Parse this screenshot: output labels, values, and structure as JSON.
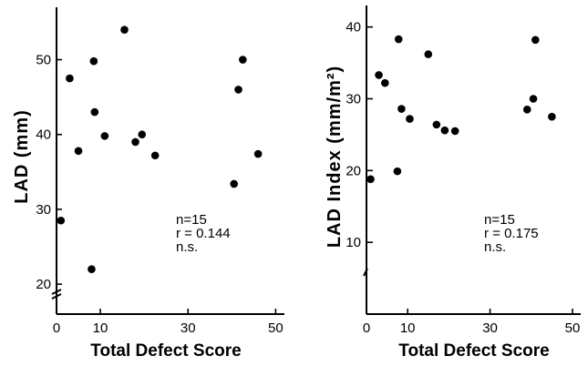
{
  "chart_data": [
    {
      "type": "scatter",
      "xlabel": "Total Defect Score",
      "ylabel": "LAD (mm)",
      "xlim": [
        0,
        52
      ],
      "ylim": [
        16,
        57
      ],
      "x_ticks": [
        0,
        10,
        30,
        50
      ],
      "x_tick_labels": [
        "0",
        "10",
        "30",
        "50"
      ],
      "y_ticks": [
        20,
        30,
        40,
        50
      ],
      "y_tick_labels": [
        "20",
        "30",
        "40",
        "50"
      ],
      "annotations": [
        "n=15",
        "r = 0.144",
        "n.s."
      ],
      "points": [
        {
          "x": 1,
          "y": 28.5
        },
        {
          "x": 3,
          "y": 47.5
        },
        {
          "x": 5,
          "y": 37.8
        },
        {
          "x": 8,
          "y": 22
        },
        {
          "x": 8.5,
          "y": 49.8
        },
        {
          "x": 8.7,
          "y": 43
        },
        {
          "x": 11,
          "y": 39.8
        },
        {
          "x": 15.5,
          "y": 54
        },
        {
          "x": 18,
          "y": 39
        },
        {
          "x": 19.5,
          "y": 40
        },
        {
          "x": 22.5,
          "y": 37.2
        },
        {
          "x": 40.5,
          "y": 33.4
        },
        {
          "x": 41.5,
          "y": 46
        },
        {
          "x": 42.5,
          "y": 50
        },
        {
          "x": 46,
          "y": 37.4
        }
      ]
    },
    {
      "type": "scatter",
      "xlabel": "Total Defect Score",
      "ylabel": "LAD Index (mm/m²)",
      "xlim": [
        0,
        52
      ],
      "ylim": [
        0,
        43
      ],
      "x_ticks": [
        0,
        10,
        30,
        50
      ],
      "x_tick_labels": [
        "0",
        "10",
        "30",
        "50"
      ],
      "y_ticks": [
        10,
        20,
        30,
        40
      ],
      "y_tick_labels": [
        "10",
        "20",
        "30",
        "40"
      ],
      "annotations": [
        "n=15",
        "r = 0.175",
        "n.s."
      ],
      "points": [
        {
          "x": 1,
          "y": 18.8
        },
        {
          "x": 3,
          "y": 33.3
        },
        {
          "x": 4.5,
          "y": 32.2
        },
        {
          "x": 7.5,
          "y": 19.9
        },
        {
          "x": 7.8,
          "y": 38.3
        },
        {
          "x": 8.5,
          "y": 28.6
        },
        {
          "x": 10.5,
          "y": 27.2
        },
        {
          "x": 15,
          "y": 36.2
        },
        {
          "x": 17,
          "y": 26.4
        },
        {
          "x": 19,
          "y": 25.6
        },
        {
          "x": 21.5,
          "y": 25.5
        },
        {
          "x": 39,
          "y": 28.5
        },
        {
          "x": 40.5,
          "y": 30
        },
        {
          "x": 41,
          "y": 38.2
        },
        {
          "x": 45,
          "y": 27.5
        }
      ]
    }
  ]
}
